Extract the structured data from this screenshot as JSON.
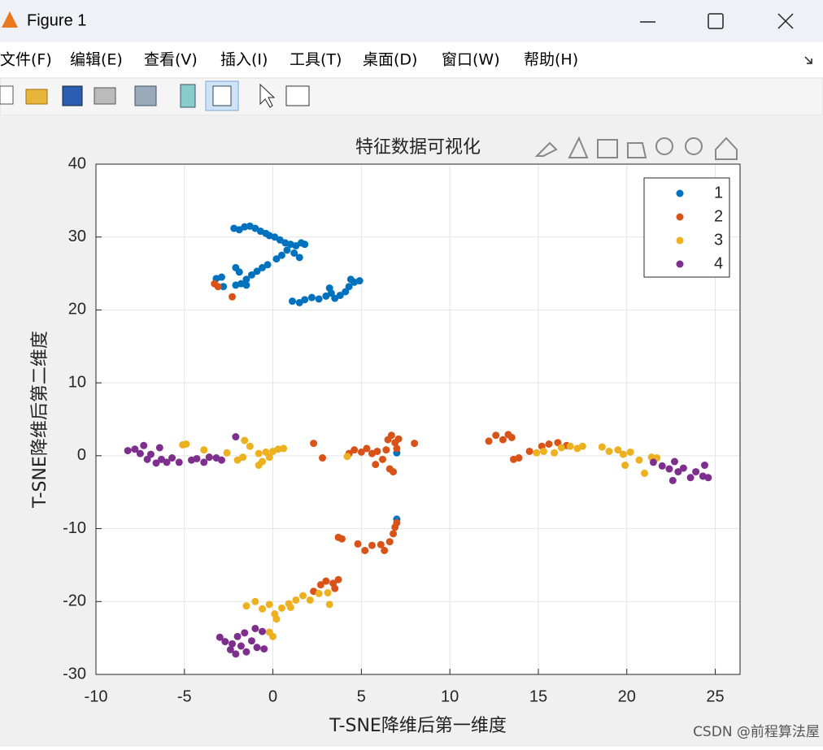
{
  "window": {
    "title": "Figure 1"
  },
  "menu": [
    "文件(F)",
    "编辑(E)",
    "查看(V)",
    "插入(I)",
    "工具(T)",
    "桌面(D)",
    "窗口(W)",
    "帮助(H)"
  ],
  "watermark": "CSDN @前程算法屋",
  "chart_data": {
    "type": "scatter",
    "title": "特征数据可视化",
    "x_label": "T-SNE降维后第一维度",
    "y_label": "T-SNE降维后第二维度",
    "xlim": [
      -10,
      26.4
    ],
    "ylim": [
      -30,
      40
    ],
    "xticks": [
      -10,
      -5,
      0,
      5,
      10,
      15,
      20,
      25
    ],
    "yticks": [
      -30,
      -20,
      -10,
      0,
      10,
      20,
      30,
      40
    ],
    "grid": true,
    "legend": "upper right",
    "series": [
      {
        "name": "1",
        "color": "#0072BD",
        "x": [
          -2.2,
          -1.9,
          -1.6,
          -1.3,
          -1.0,
          -0.7,
          -0.4,
          -0.2,
          0.1,
          0.4,
          0.7,
          1.0,
          1.3,
          1.6,
          1.8,
          0.8,
          1.2,
          0.5,
          0.2,
          1.5,
          -0.3,
          -0.6,
          -0.9,
          -1.2,
          -1.5,
          -1.8,
          -2.1,
          -1.9,
          -2.1,
          -1.5,
          -3.2,
          -2.9,
          -2.8,
          1.1,
          1.5,
          1.8,
          2.2,
          2.6,
          3.0,
          3.3,
          3.5,
          3.8,
          4.1,
          4.3,
          4.6,
          4.9,
          4.4,
          3.2,
          7.0,
          7.0
        ],
        "values": [
          31.2,
          31.0,
          31.4,
          31.5,
          31.2,
          30.8,
          30.5,
          30.2,
          30.0,
          29.6,
          29.2,
          29.0,
          28.8,
          29.2,
          29.0,
          28.2,
          27.8,
          27.5,
          27.0,
          27.2,
          26.2,
          25.8,
          25.3,
          24.8,
          24.2,
          23.6,
          23.4,
          25.2,
          25.8,
          23.4,
          24.3,
          24.5,
          23.2,
          21.2,
          21.0,
          21.4,
          21.7,
          21.5,
          21.9,
          22.3,
          21.6,
          22.0,
          22.5,
          23.2,
          23.8,
          24.0,
          24.2,
          23.0,
          0.4,
          -8.7
        ]
      },
      {
        "name": "2",
        "color": "#D95319",
        "x": [
          -3.3,
          -3.1,
          -2.3,
          2.3,
          2.8,
          4.3,
          4.6,
          5.0,
          5.3,
          5.6,
          5.9,
          6.2,
          6.4,
          6.5,
          6.7,
          6.9,
          7.1,
          7.0,
          6.6,
          6.8,
          8.0,
          5.8,
          12.2,
          12.6,
          13.0,
          13.3,
          13.5,
          13.6,
          13.9,
          14.5,
          15.2,
          15.6,
          16.1,
          16.6,
          3.7,
          3.9,
          4.8,
          5.2,
          5.6,
          6.1,
          6.3,
          6.6,
          6.8,
          6.9,
          7.0,
          2.3,
          2.7,
          3.0,
          3.4,
          3.7,
          3.5
        ],
        "values": [
          23.6,
          23.2,
          21.8,
          1.7,
          -0.3,
          0.3,
          0.8,
          0.5,
          1.0,
          0.3,
          0.6,
          -0.5,
          0.8,
          2.2,
          2.8,
          1.8,
          2.3,
          1.0,
          -1.8,
          -2.2,
          1.7,
          -1.2,
          2.0,
          2.8,
          2.2,
          2.9,
          2.5,
          -0.5,
          -0.3,
          0.6,
          1.3,
          1.6,
          1.8,
          1.4,
          -11.2,
          -11.4,
          -12.1,
          -13.0,
          -12.3,
          -12.2,
          -13.0,
          -11.8,
          -10.7,
          -9.8,
          -9.2,
          -18.6,
          -17.7,
          -17.2,
          -17.5,
          -17.0,
          -18.2
        ]
      },
      {
        "name": "3",
        "color": "#EDB120",
        "x": [
          -5.1,
          -4.9,
          -3.9,
          -3.6,
          -2.6,
          -2.0,
          -1.7,
          -1.6,
          -1.3,
          -0.8,
          -0.6,
          -0.4,
          -0.2,
          0.0,
          0.3,
          0.6,
          -0.8,
          4.2,
          14.9,
          15.3,
          15.9,
          16.3,
          16.8,
          17.2,
          17.5,
          18.6,
          19.0,
          19.5,
          19.8,
          20.2,
          19.9,
          20.7,
          21.0,
          21.4,
          21.7,
          -1.5,
          -1.0,
          -0.6,
          -0.2,
          0.1,
          0.5,
          0.9,
          1.3,
          1.7,
          2.1,
          2.6,
          3.1,
          3.2,
          1.0,
          0.2,
          -0.2,
          0.0
        ],
        "values": [
          1.5,
          1.6,
          0.8,
          -0.2,
          0.4,
          -0.6,
          -0.2,
          2.1,
          1.3,
          0.3,
          -0.8,
          0.5,
          -0.2,
          0.6,
          0.9,
          1.0,
          -1.3,
          -0.1,
          0.4,
          0.6,
          0.4,
          1.1,
          1.3,
          1.0,
          1.3,
          1.2,
          0.6,
          0.8,
          0.2,
          0.5,
          -1.3,
          -0.6,
          -2.4,
          -0.2,
          -0.3,
          -20.6,
          -20.0,
          -21.0,
          -20.4,
          -21.7,
          -20.9,
          -20.3,
          -19.8,
          -19.2,
          -19.8,
          -18.9,
          -18.8,
          -20.4,
          -20.8,
          -22.4,
          -24.2,
          -24.8
        ]
      },
      {
        "name": "4",
        "color": "#7E2F8E",
        "x": [
          -8.2,
          -7.8,
          -7.5,
          -7.3,
          -7.1,
          -6.9,
          -6.6,
          -6.3,
          -6.0,
          -5.7,
          -5.3,
          -4.6,
          -4.3,
          -3.9,
          -3.6,
          -3.2,
          -2.9,
          -6.4,
          -2.1,
          22.0,
          22.4,
          22.6,
          22.9,
          23.2,
          23.6,
          23.9,
          24.3,
          24.6,
          24.4,
          21.5,
          22.7,
          -3.0,
          -2.7,
          -2.4,
          -2.1,
          -1.8,
          -1.5,
          -1.2,
          -0.9,
          -0.6,
          -1.0,
          -1.6,
          -2.0,
          -0.5,
          -2.3
        ],
        "values": [
          0.7,
          0.9,
          0.3,
          1.4,
          -0.5,
          0.2,
          -1.0,
          -0.5,
          -0.9,
          -0.3,
          -0.9,
          -0.6,
          -0.4,
          -0.9,
          -0.2,
          -0.3,
          -0.6,
          1.1,
          2.6,
          -1.4,
          -1.8,
          -3.4,
          -2.2,
          -1.7,
          -3.0,
          -2.2,
          -2.8,
          -3.0,
          -1.3,
          -0.9,
          -0.8,
          -24.9,
          -25.5,
          -26.6,
          -27.2,
          -26.1,
          -26.9,
          -25.4,
          -26.3,
          -24.1,
          -23.7,
          -24.3,
          -24.8,
          -26.5,
          -25.8
        ]
      }
    ]
  }
}
